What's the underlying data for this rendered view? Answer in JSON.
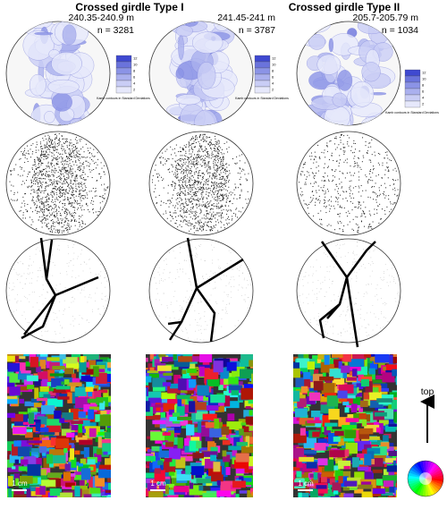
{
  "headers": [
    "Crossed girdle Type I",
    "Crossed girdle Type II"
  ],
  "columns": [
    {
      "depth": "240.35-240.9 m",
      "n": "n = 3281",
      "colorbar_ticks": [
        "12",
        "10",
        "8",
        "6",
        "4",
        "2"
      ],
      "colorbar_label": "Kamb contours in Standard Deviations",
      "scale_bar": "1 cm"
    },
    {
      "depth": "241.45-241 m",
      "n": "n = 3787",
      "colorbar_ticks": [
        "12",
        "10",
        "8",
        "6",
        "4",
        "2"
      ],
      "colorbar_label": "Kamb contours in Standard Deviations",
      "scale_bar": "1 cm"
    },
    {
      "depth": "205.7-205.79 m",
      "n": "n = 1034",
      "colorbar_ticks": [
        "12",
        "10",
        "8",
        "6",
        "4",
        "2"
      ],
      "colorbar_label": "Kamb contours in Standard Deviations",
      "scale_bar": "1 cm"
    }
  ],
  "top_label": "top"
}
